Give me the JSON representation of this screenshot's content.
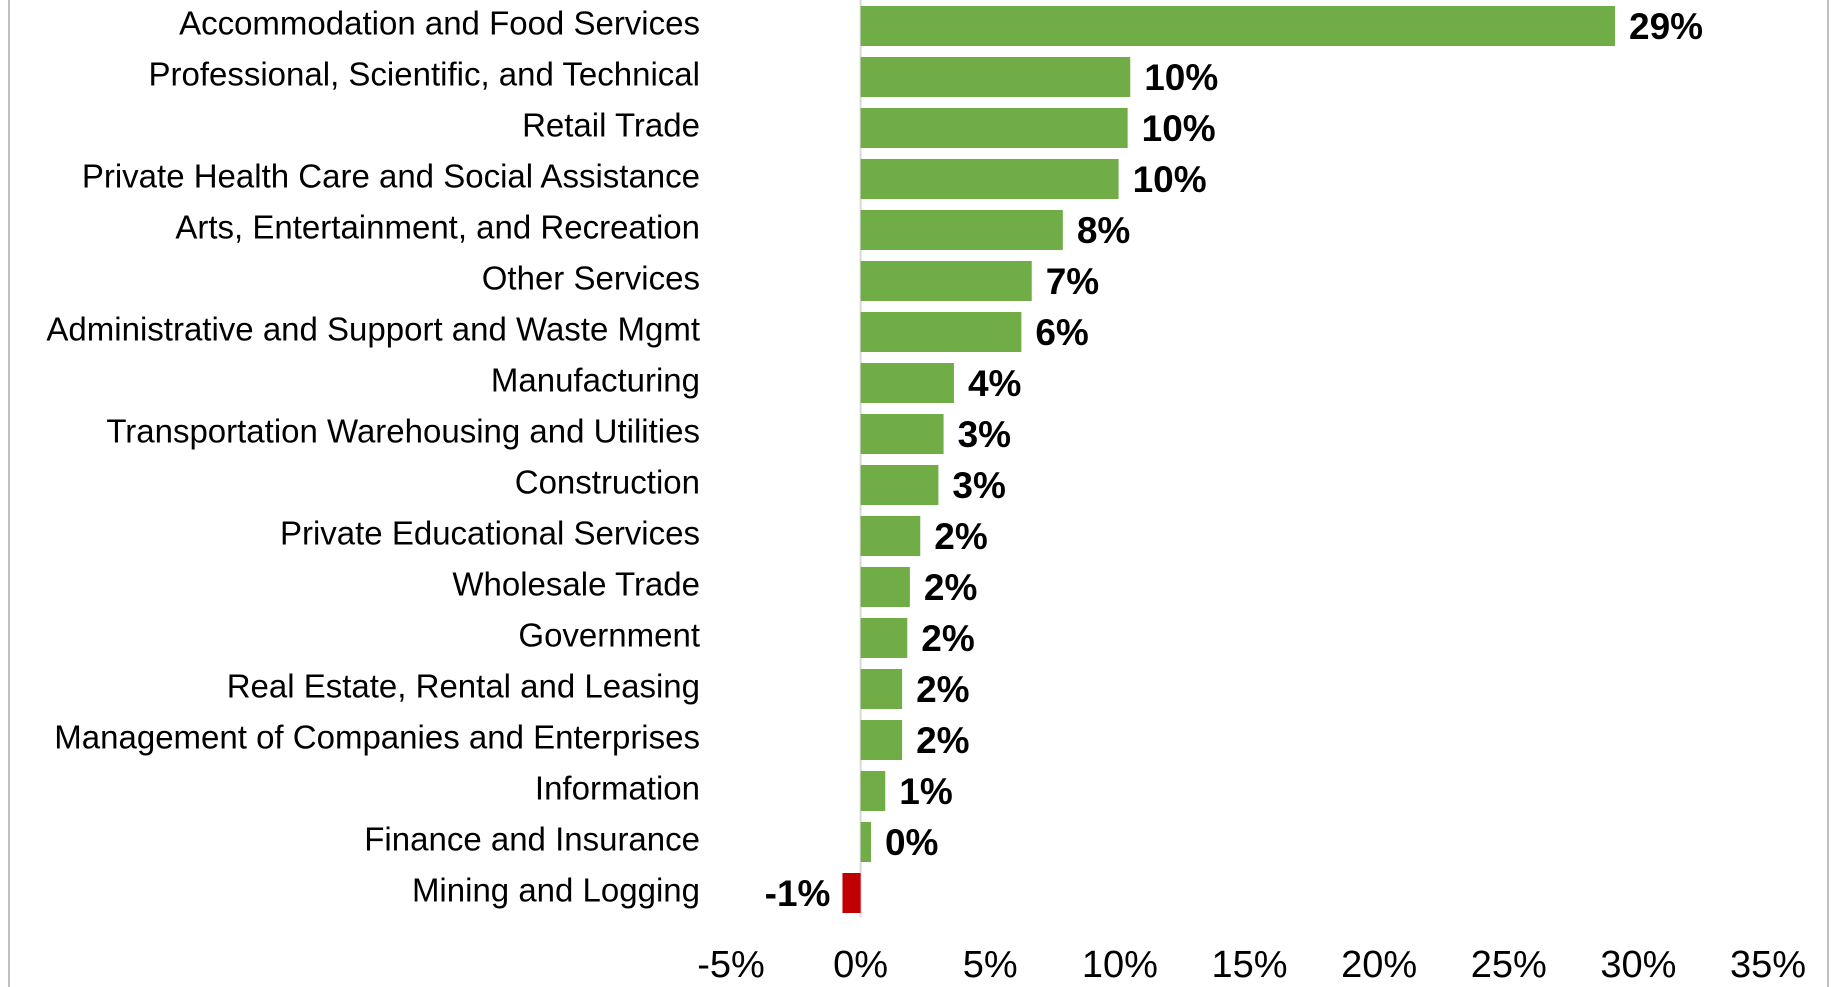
{
  "chart_data": {
    "type": "bar",
    "orientation": "horizontal",
    "categories": [
      "Accommodation and Food Services",
      "Professional, Scientific, and Technical",
      "Retail Trade",
      "Private Health Care and Social Assistance",
      "Arts, Entertainment, and Recreation",
      "Other Services",
      "Administrative and Support and Waste Mgmt",
      "Manufacturing",
      "Transportation Warehousing and Utilities",
      "Construction",
      "Private Educational Services",
      "Wholesale Trade",
      "Government",
      "Real Estate, Rental and Leasing",
      "Management of Companies and Enterprises",
      "Information",
      "Finance and Insurance",
      "Mining and Logging"
    ],
    "values": [
      29.1,
      10.4,
      10.3,
      9.95,
      7.8,
      6.6,
      6.2,
      3.6,
      3.2,
      3.0,
      2.3,
      1.9,
      1.8,
      1.6,
      1.6,
      0.95,
      0.4,
      -0.7
    ],
    "value_labels": [
      "29%",
      "10%",
      "10%",
      "10%",
      "8%",
      "7%",
      "6%",
      "4%",
      "3%",
      "3%",
      "2%",
      "2%",
      "2%",
      "2%",
      "2%",
      "1%",
      "0%",
      "-1%"
    ],
    "colors": [
      "#70ad47",
      "#70ad47",
      "#70ad47",
      "#70ad47",
      "#70ad47",
      "#70ad47",
      "#70ad47",
      "#70ad47",
      "#70ad47",
      "#70ad47",
      "#70ad47",
      "#70ad47",
      "#70ad47",
      "#70ad47",
      "#70ad47",
      "#70ad47",
      "#70ad47",
      "#c00000"
    ],
    "xlim": [
      -5,
      35
    ],
    "xticks": [
      {
        "value": -5,
        "label": "-5%"
      },
      {
        "value": 0,
        "label": "0%"
      },
      {
        "value": 5,
        "label": "5%"
      },
      {
        "value": 10,
        "label": "10%"
      },
      {
        "value": 15,
        "label": "15%"
      },
      {
        "value": 20,
        "label": "20%"
      },
      {
        "value": 25,
        "label": "25%"
      },
      {
        "value": 30,
        "label": "30%"
      },
      {
        "value": 35,
        "label": "35%"
      }
    ],
    "grid": false
  }
}
